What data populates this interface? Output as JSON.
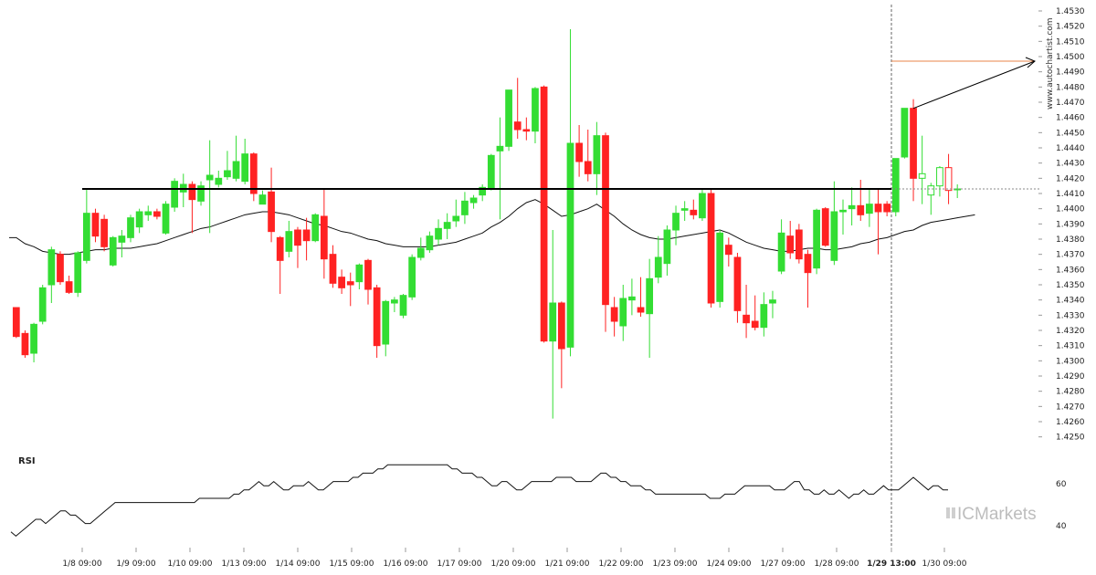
{
  "chart_data": [
    {
      "type": "candlestick",
      "y_ticks": [
        "1.4530",
        "1.4520",
        "1.4510",
        "1.4500",
        "1.4490",
        "1.4480",
        "1.4470",
        "1.4460",
        "1.4450",
        "1.4440",
        "1.4430",
        "1.4420",
        "1.4410",
        "1.4400",
        "1.4390",
        "1.4380",
        "1.4370",
        "1.4360",
        "1.4350",
        "1.4340",
        "1.4330",
        "1.4320",
        "1.4310",
        "1.4300",
        "1.4290",
        "1.4280",
        "1.4270",
        "1.4260",
        "1.4250"
      ],
      "ylim": [
        1.4245,
        1.4533
      ],
      "x_ticks": [
        "1/8 09:00",
        "1/9 09:00",
        "1/10 09:00",
        "1/13 09:00",
        "1/14 09:00",
        "1/15 09:00",
        "1/16 09:00",
        "1/17 09:00",
        "1/20 09:00",
        "1/21 09:00",
        "1/22 09:00",
        "1/23 09:00",
        "1/24 09:00",
        "1/27 09:00",
        "1/28 09:00",
        "1/29 13:00",
        "1/30 09:00"
      ],
      "highlight_x_tick": "1/29 13:00",
      "support_level": 1.4413,
      "target_level": 1.4497,
      "current_price": 1.4413,
      "candles": [
        {
          "o": 1.4335,
          "h": 1.4335,
          "l": 1.4315,
          "c": 1.4316
        },
        {
          "o": 1.4318,
          "h": 1.432,
          "l": 1.4302,
          "c": 1.4304
        },
        {
          "o": 1.4305,
          "h": 1.4325,
          "l": 1.4299,
          "c": 1.4324
        },
        {
          "o": 1.4326,
          "h": 1.435,
          "l": 1.4324,
          "c": 1.4348
        },
        {
          "o": 1.435,
          "h": 1.4375,
          "l": 1.4338,
          "c": 1.4373
        },
        {
          "o": 1.437,
          "h": 1.4372,
          "l": 1.435,
          "c": 1.4352
        },
        {
          "o": 1.4352,
          "h": 1.4356,
          "l": 1.4344,
          "c": 1.4345
        },
        {
          "o": 1.4345,
          "h": 1.4372,
          "l": 1.4342,
          "c": 1.4371
        },
        {
          "o": 1.4366,
          "h": 1.4413,
          "l": 1.4364,
          "c": 1.4397
        },
        {
          "o": 1.4397,
          "h": 1.44,
          "l": 1.4378,
          "c": 1.4382
        },
        {
          "o": 1.4393,
          "h": 1.4396,
          "l": 1.4372,
          "c": 1.4375
        },
        {
          "o": 1.4363,
          "h": 1.4382,
          "l": 1.4362,
          "c": 1.4381
        },
        {
          "o": 1.4378,
          "h": 1.4386,
          "l": 1.4368,
          "c": 1.4382
        },
        {
          "o": 1.4381,
          "h": 1.4396,
          "l": 1.4378,
          "c": 1.4394
        },
        {
          "o": 1.4388,
          "h": 1.44,
          "l": 1.4384,
          "c": 1.4398
        },
        {
          "o": 1.4396,
          "h": 1.4402,
          "l": 1.4392,
          "c": 1.4398
        },
        {
          "o": 1.4398,
          "h": 1.44,
          "l": 1.4393,
          "c": 1.4395
        },
        {
          "o": 1.4384,
          "h": 1.4405,
          "l": 1.4383,
          "c": 1.4403
        },
        {
          "o": 1.4401,
          "h": 1.442,
          "l": 1.4398,
          "c": 1.4418
        },
        {
          "o": 1.4411,
          "h": 1.4423,
          "l": 1.4401,
          "c": 1.4416
        },
        {
          "o": 1.4416,
          "h": 1.4418,
          "l": 1.4384,
          "c": 1.4406
        },
        {
          "o": 1.4405,
          "h": 1.4418,
          "l": 1.4402,
          "c": 1.4415
        },
        {
          "o": 1.4419,
          "h": 1.4445,
          "l": 1.4384,
          "c": 1.4422
        },
        {
          "o": 1.4416,
          "h": 1.4425,
          "l": 1.4414,
          "c": 1.442
        },
        {
          "o": 1.4421,
          "h": 1.4438,
          "l": 1.4419,
          "c": 1.4425
        },
        {
          "o": 1.442,
          "h": 1.4448,
          "l": 1.4418,
          "c": 1.4431
        },
        {
          "o": 1.4418,
          "h": 1.4446,
          "l": 1.4416,
          "c": 1.4436
        },
        {
          "o": 1.4436,
          "h": 1.4437,
          "l": 1.4405,
          "c": 1.441
        },
        {
          "o": 1.4403,
          "h": 1.4412,
          "l": 1.4403,
          "c": 1.4409
        },
        {
          "o": 1.4411,
          "h": 1.4427,
          "l": 1.4378,
          "c": 1.4385
        },
        {
          "o": 1.4381,
          "h": 1.4382,
          "l": 1.4344,
          "c": 1.4366
        },
        {
          "o": 1.4372,
          "h": 1.4392,
          "l": 1.4368,
          "c": 1.4385
        },
        {
          "o": 1.4386,
          "h": 1.4388,
          "l": 1.4361,
          "c": 1.4376
        },
        {
          "o": 1.4386,
          "h": 1.4394,
          "l": 1.4366,
          "c": 1.4379
        },
        {
          "o": 1.4379,
          "h": 1.4397,
          "l": 1.4378,
          "c": 1.4396
        },
        {
          "o": 1.4395,
          "h": 1.4413,
          "l": 1.4354,
          "c": 1.4367
        },
        {
          "o": 1.437,
          "h": 1.4376,
          "l": 1.4348,
          "c": 1.4351
        },
        {
          "o": 1.4355,
          "h": 1.436,
          "l": 1.4344,
          "c": 1.4348
        },
        {
          "o": 1.4352,
          "h": 1.4358,
          "l": 1.4336,
          "c": 1.435
        },
        {
          "o": 1.4352,
          "h": 1.4364,
          "l": 1.4347,
          "c": 1.4363
        },
        {
          "o": 1.4366,
          "h": 1.4367,
          "l": 1.4337,
          "c": 1.4347
        },
        {
          "o": 1.4348,
          "h": 1.435,
          "l": 1.4302,
          "c": 1.431
        },
        {
          "o": 1.4311,
          "h": 1.434,
          "l": 1.4303,
          "c": 1.4339
        },
        {
          "o": 1.4338,
          "h": 1.4342,
          "l": 1.4332,
          "c": 1.434
        },
        {
          "o": 1.433,
          "h": 1.4344,
          "l": 1.4328,
          "c": 1.4343
        },
        {
          "o": 1.4342,
          "h": 1.437,
          "l": 1.434,
          "c": 1.4368
        },
        {
          "o": 1.4368,
          "h": 1.4381,
          "l": 1.4366,
          "c": 1.4374
        },
        {
          "o": 1.4373,
          "h": 1.4385,
          "l": 1.4371,
          "c": 1.4382
        },
        {
          "o": 1.438,
          "h": 1.4393,
          "l": 1.4376,
          "c": 1.4387
        },
        {
          "o": 1.4387,
          "h": 1.4397,
          "l": 1.438,
          "c": 1.4391
        },
        {
          "o": 1.4392,
          "h": 1.4406,
          "l": 1.4388,
          "c": 1.4395
        },
        {
          "o": 1.4396,
          "h": 1.4411,
          "l": 1.439,
          "c": 1.4405
        },
        {
          "o": 1.4404,
          "h": 1.4409,
          "l": 1.44,
          "c": 1.4407
        },
        {
          "o": 1.4409,
          "h": 1.4416,
          "l": 1.4405,
          "c": 1.4414
        },
        {
          "o": 1.4413,
          "h": 1.4436,
          "l": 1.4412,
          "c": 1.4435
        },
        {
          "o": 1.4438,
          "h": 1.446,
          "l": 1.4393,
          "c": 1.4441
        },
        {
          "o": 1.4441,
          "h": 1.4476,
          "l": 1.4438,
          "c": 1.4478
        },
        {
          "o": 1.4457,
          "h": 1.4486,
          "l": 1.4446,
          "c": 1.4452
        },
        {
          "o": 1.4452,
          "h": 1.446,
          "l": 1.4445,
          "c": 1.4451
        },
        {
          "o": 1.4451,
          "h": 1.448,
          "l": 1.4443,
          "c": 1.4479
        },
        {
          "o": 1.448,
          "h": 1.4481,
          "l": 1.4312,
          "c": 1.4313
        },
        {
          "o": 1.4313,
          "h": 1.4386,
          "l": 1.4262,
          "c": 1.4338
        },
        {
          "o": 1.4338,
          "h": 1.4339,
          "l": 1.4282,
          "c": 1.4308
        },
        {
          "o": 1.4309,
          "h": 1.4518,
          "l": 1.4303,
          "c": 1.4443
        },
        {
          "o": 1.4443,
          "h": 1.4455,
          "l": 1.4421,
          "c": 1.4431
        },
        {
          "o": 1.4431,
          "h": 1.4452,
          "l": 1.4418,
          "c": 1.4423
        },
        {
          "o": 1.4423,
          "h": 1.4457,
          "l": 1.4409,
          "c": 1.4448
        },
        {
          "o": 1.4448,
          "h": 1.445,
          "l": 1.4319,
          "c": 1.4337
        },
        {
          "o": 1.4335,
          "h": 1.4342,
          "l": 1.4316,
          "c": 1.4326
        },
        {
          "o": 1.4323,
          "h": 1.435,
          "l": 1.4313,
          "c": 1.4341
        },
        {
          "o": 1.434,
          "h": 1.4354,
          "l": 1.433,
          "c": 1.4342
        },
        {
          "o": 1.4335,
          "h": 1.4355,
          "l": 1.4329,
          "c": 1.4332
        },
        {
          "o": 1.4331,
          "h": 1.4367,
          "l": 1.4302,
          "c": 1.4354
        },
        {
          "o": 1.4355,
          "h": 1.4382,
          "l": 1.4351,
          "c": 1.4368
        },
        {
          "o": 1.4364,
          "h": 1.4389,
          "l": 1.4356,
          "c": 1.4386
        },
        {
          "o": 1.4386,
          "h": 1.4402,
          "l": 1.4376,
          "c": 1.4397
        },
        {
          "o": 1.4399,
          "h": 1.4405,
          "l": 1.4392,
          "c": 1.44
        },
        {
          "o": 1.4399,
          "h": 1.4406,
          "l": 1.4393,
          "c": 1.4396
        },
        {
          "o": 1.4394,
          "h": 1.4413,
          "l": 1.4392,
          "c": 1.441
        },
        {
          "o": 1.441,
          "h": 1.4413,
          "l": 1.4335,
          "c": 1.4338
        },
        {
          "o": 1.4339,
          "h": 1.4386,
          "l": 1.4335,
          "c": 1.4384
        },
        {
          "o": 1.4376,
          "h": 1.4381,
          "l": 1.4362,
          "c": 1.437
        },
        {
          "o": 1.4368,
          "h": 1.4371,
          "l": 1.4325,
          "c": 1.4333
        },
        {
          "o": 1.433,
          "h": 1.435,
          "l": 1.4315,
          "c": 1.4325
        },
        {
          "o": 1.4326,
          "h": 1.4343,
          "l": 1.432,
          "c": 1.4322
        },
        {
          "o": 1.4322,
          "h": 1.4345,
          "l": 1.4316,
          "c": 1.4337
        },
        {
          "o": 1.4338,
          "h": 1.4346,
          "l": 1.4328,
          "c": 1.434
        },
        {
          "o": 1.4359,
          "h": 1.4393,
          "l": 1.4357,
          "c": 1.4384
        },
        {
          "o": 1.4382,
          "h": 1.4392,
          "l": 1.4367,
          "c": 1.4371
        },
        {
          "o": 1.4386,
          "h": 1.439,
          "l": 1.4364,
          "c": 1.4367
        },
        {
          "o": 1.437,
          "h": 1.4373,
          "l": 1.4335,
          "c": 1.4358
        },
        {
          "o": 1.4361,
          "h": 1.44,
          "l": 1.4357,
          "c": 1.4399
        },
        {
          "o": 1.44,
          "h": 1.4401,
          "l": 1.4375,
          "c": 1.4376
        },
        {
          "o": 1.4366,
          "h": 1.4418,
          "l": 1.4363,
          "c": 1.4398
        },
        {
          "o": 1.4398,
          "h": 1.4406,
          "l": 1.4383,
          "c": 1.4399
        },
        {
          "o": 1.44,
          "h": 1.4414,
          "l": 1.4389,
          "c": 1.4402
        },
        {
          "o": 1.4402,
          "h": 1.4419,
          "l": 1.4392,
          "c": 1.4396
        },
        {
          "o": 1.4397,
          "h": 1.4413,
          "l": 1.4388,
          "c": 1.4403
        },
        {
          "o": 1.4403,
          "h": 1.4413,
          "l": 1.437,
          "c": 1.4398
        },
        {
          "o": 1.4403,
          "h": 1.4405,
          "l": 1.4395,
          "c": 1.4398
        },
        {
          "o": 1.4398,
          "h": 1.4433,
          "l": 1.4395,
          "c": 1.4433
        },
        {
          "o": 1.4434,
          "h": 1.4466,
          "l": 1.4433,
          "c": 1.4466
        },
        {
          "o": 1.4466,
          "h": 1.4472,
          "l": 1.4405,
          "c": 1.442
        },
        {
          "o": 1.442,
          "h": 1.4448,
          "l": 1.4403,
          "c": 1.4423
        },
        {
          "o": 1.4409,
          "h": 1.4417,
          "l": 1.4396,
          "c": 1.4415
        },
        {
          "o": 1.4415,
          "h": 1.4428,
          "l": 1.4408,
          "c": 1.4427
        },
        {
          "o": 1.4427,
          "h": 1.4436,
          "l": 1.4403,
          "c": 1.4412
        },
        {
          "o": 1.4413,
          "h": 1.4416,
          "l": 1.4407,
          "c": 1.4413
        }
      ],
      "ma": [
        1.4381,
        1.4377,
        1.4375,
        1.4372,
        1.4371,
        1.437,
        1.437,
        1.4371,
        1.4372,
        1.4373,
        1.4373,
        1.4374,
        1.4374,
        1.4374,
        1.4375,
        1.4376,
        1.4377,
        1.4379,
        1.4381,
        1.4383,
        1.4385,
        1.4387,
        1.4388,
        1.439,
        1.4392,
        1.4394,
        1.4396,
        1.4397,
        1.4398,
        1.4398,
        1.4397,
        1.4396,
        1.4394,
        1.4392,
        1.439,
        1.4389,
        1.4387,
        1.4385,
        1.4384,
        1.4382,
        1.438,
        1.4379,
        1.4377,
        1.4376,
        1.4375,
        1.4375,
        1.4375,
        1.4375,
        1.4376,
        1.4377,
        1.4378,
        1.438,
        1.4382,
        1.4384,
        1.4388,
        1.4391,
        1.4395,
        1.44,
        1.4404,
        1.4406,
        1.4403,
        1.4399,
        1.4395,
        1.4396,
        1.4398,
        1.44,
        1.4403,
        1.4399,
        1.4395,
        1.439,
        1.4386,
        1.4383,
        1.4381,
        1.438,
        1.438,
        1.4381,
        1.4382,
        1.4383,
        1.4384,
        1.4385,
        1.4386,
        1.4384,
        1.4381,
        1.4378,
        1.4376,
        1.4374,
        1.4373,
        1.4372,
        1.4372,
        1.4373,
        1.4374,
        1.4374,
        1.4373,
        1.4373,
        1.4374,
        1.4375,
        1.4377,
        1.4378,
        1.438,
        1.4381,
        1.4383,
        1.4385,
        1.4386,
        1.4389,
        1.4391,
        1.4392,
        1.4393,
        1.4394,
        1.4395,
        1.4396
      ],
      "watermark": "www.autochartist.com",
      "brand": "ICMarkets",
      "colors": {
        "up": "#33dd33",
        "down": "#ff2222",
        "ma": "#111111",
        "support": "#000000",
        "target": "#e8844a",
        "arrow": "#000000"
      }
    },
    {
      "type": "line",
      "name": "RSI",
      "y_ticks": [
        "60",
        "40"
      ],
      "ylim": [
        33,
        73
      ],
      "values": [
        37,
        35,
        37,
        39,
        41,
        43,
        43,
        41,
        43,
        45,
        47,
        47,
        45,
        45,
        43,
        41,
        41,
        43,
        45,
        47,
        49,
        51,
        51,
        51,
        51,
        51,
        51,
        51,
        51,
        51,
        51,
        51,
        51,
        51,
        51,
        51,
        51,
        51,
        53,
        53,
        53,
        53,
        53,
        53,
        53,
        55,
        55,
        57,
        57,
        59,
        61,
        59,
        59,
        61,
        59,
        57,
        57,
        59,
        59,
        59,
        61,
        59,
        57,
        57,
        59,
        61,
        61,
        61,
        61,
        63,
        63,
        65,
        65,
        65,
        67,
        67,
        69,
        69,
        69,
        69,
        69,
        69,
        69,
        69,
        69,
        69,
        69,
        69,
        69,
        67,
        67,
        65,
        65,
        65,
        63,
        63,
        61,
        59,
        59,
        61,
        61,
        59,
        57,
        57,
        59,
        61,
        61,
        61,
        61,
        61,
        63,
        63,
        63,
        63,
        61,
        61,
        61,
        61,
        63,
        65,
        65,
        63,
        63,
        61,
        61,
        59,
        59,
        59,
        57,
        57,
        55,
        55,
        55,
        55,
        55,
        55,
        55,
        55,
        55,
        55,
        55,
        53,
        53,
        53,
        55,
        55,
        55,
        57,
        59,
        59,
        59,
        59,
        59,
        59,
        57,
        57,
        57,
        59,
        61,
        61,
        57,
        57,
        55,
        55,
        57,
        55,
        55,
        57,
        55,
        53,
        55,
        55,
        57,
        55,
        55,
        57,
        59,
        57,
        57,
        57,
        59,
        61,
        63,
        61,
        59,
        57,
        59,
        59,
        57,
        57
      ]
    }
  ]
}
